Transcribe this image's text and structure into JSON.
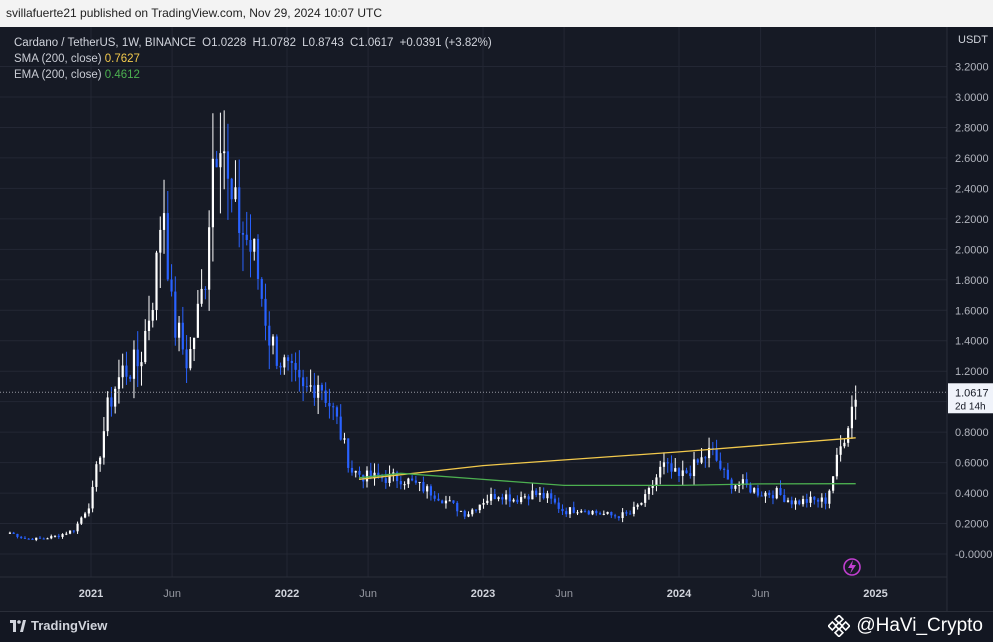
{
  "header": {
    "publish_line": "svillafuerte21 published on TradingView.com, Nov 29, 2024 10:07 UTC"
  },
  "legend": {
    "symbol": "Cardano / TetherUS, 1W, BINANCE",
    "open": "O1.0228",
    "high": "H1.0782",
    "low": "L0.8743",
    "close": "C1.0617",
    "change": "+0.0391 (+3.82%)",
    "sma_label": "SMA (200, close)",
    "sma_value": "0.7627",
    "ema_label": "EMA (200, close)",
    "ema_value": "0.4612"
  },
  "footer": {
    "brand": "TradingView",
    "watermark": "@HaVi_Crypto"
  },
  "colors": {
    "up": "#ffffff",
    "down": "#2962ff",
    "sma": "#f2c94c",
    "ema": "#4caf50",
    "background": "#161a25"
  },
  "chart_data": {
    "type": "candlestick",
    "currency_label": "USDT",
    "y_ticks": [
      "3.2000",
      "3.0000",
      "2.8000",
      "2.6000",
      "2.4000",
      "2.2000",
      "2.0000",
      "1.8000",
      "1.6000",
      "1.4000",
      "1.2000",
      "1.0000",
      "0.8000",
      "0.6000",
      "0.4000",
      "0.2000",
      "-0.0000"
    ],
    "ylim": [
      -0.2,
      3.4
    ],
    "x_ticks": [
      {
        "label": "2021",
        "date": "2021-01-01"
      },
      {
        "label": "Jun",
        "date": "2021-06-01"
      },
      {
        "label": "2022",
        "date": "2022-01-01"
      },
      {
        "label": "Jun",
        "date": "2022-06-01"
      },
      {
        "label": "2023",
        "date": "2023-01-01"
      },
      {
        "label": "Jun",
        "date": "2023-06-01"
      },
      {
        "label": "2024",
        "date": "2024-01-01"
      },
      {
        "label": "Jun",
        "date": "2024-06-01"
      },
      {
        "label": "2025",
        "date": "2025-01-01"
      }
    ],
    "last_price": "1.0617",
    "countdown": "2d 14h",
    "last_price_value": 1.0617,
    "series_close": [
      [
        "2020-08-03",
        0.14
      ],
      [
        "2020-09-01",
        0.1
      ],
      [
        "2020-10-01",
        0.1
      ],
      [
        "2020-11-01",
        0.12
      ],
      [
        "2020-12-01",
        0.16
      ],
      [
        "2021-01-01",
        0.35
      ],
      [
        "2021-02-01",
        0.95
      ],
      [
        "2021-02-15",
        1.1
      ],
      [
        "2021-03-01",
        1.2
      ],
      [
        "2021-04-01",
        1.25
      ],
      [
        "2021-05-01",
        1.8
      ],
      [
        "2021-05-15",
        2.4
      ],
      [
        "2021-06-01",
        1.55
      ],
      [
        "2021-07-01",
        1.25
      ],
      [
        "2021-08-01",
        1.8
      ],
      [
        "2021-08-15",
        2.6
      ],
      [
        "2021-09-01",
        2.9
      ],
      [
        "2021-09-15",
        2.3
      ],
      [
        "2021-10-01",
        2.2
      ],
      [
        "2021-11-01",
        1.95
      ],
      [
        "2021-12-01",
        1.4
      ],
      [
        "2022-01-01",
        1.2
      ],
      [
        "2022-02-01",
        1.05
      ],
      [
        "2022-03-01",
        1.15
      ],
      [
        "2022-04-01",
        0.9
      ],
      [
        "2022-05-01",
        0.55
      ],
      [
        "2022-06-01",
        0.5
      ],
      [
        "2022-07-01",
        0.5
      ],
      [
        "2022-08-01",
        0.5
      ],
      [
        "2022-09-01",
        0.45
      ],
      [
        "2022-10-01",
        0.4
      ],
      [
        "2022-11-01",
        0.33
      ],
      [
        "2022-12-01",
        0.26
      ],
      [
        "2023-01-01",
        0.35
      ],
      [
        "2023-02-01",
        0.4
      ],
      [
        "2023-03-01",
        0.36
      ],
      [
        "2023-04-01",
        0.4
      ],
      [
        "2023-05-01",
        0.37
      ],
      [
        "2023-06-01",
        0.28
      ],
      [
        "2023-07-01",
        0.3
      ],
      [
        "2023-08-01",
        0.27
      ],
      [
        "2023-09-01",
        0.25
      ],
      [
        "2023-10-01",
        0.26
      ],
      [
        "2023-11-01",
        0.37
      ],
      [
        "2023-12-01",
        0.58
      ],
      [
        "2024-01-01",
        0.5
      ],
      [
        "2024-02-01",
        0.58
      ],
      [
        "2024-03-01",
        0.68
      ],
      [
        "2024-04-01",
        0.47
      ],
      [
        "2024-05-01",
        0.45
      ],
      [
        "2024-06-01",
        0.4
      ],
      [
        "2024-07-01",
        0.4
      ],
      [
        "2024-08-01",
        0.34
      ],
      [
        "2024-09-01",
        0.35
      ],
      [
        "2024-10-01",
        0.35
      ],
      [
        "2024-11-01",
        0.75
      ],
      [
        "2024-11-25",
        1.06
      ]
    ],
    "sma_200": [
      [
        "2022-05-15",
        0.49
      ],
      [
        "2023-01-01",
        0.58
      ],
      [
        "2024-01-01",
        0.67
      ],
      [
        "2024-11-25",
        0.7627
      ]
    ],
    "ema_200": [
      [
        "2022-05-15",
        0.5
      ],
      [
        "2022-08-01",
        0.53
      ],
      [
        "2023-01-01",
        0.49
      ],
      [
        "2023-06-01",
        0.45
      ],
      [
        "2024-01-01",
        0.45
      ],
      [
        "2024-06-01",
        0.46
      ],
      [
        "2024-11-25",
        0.4612
      ]
    ]
  }
}
